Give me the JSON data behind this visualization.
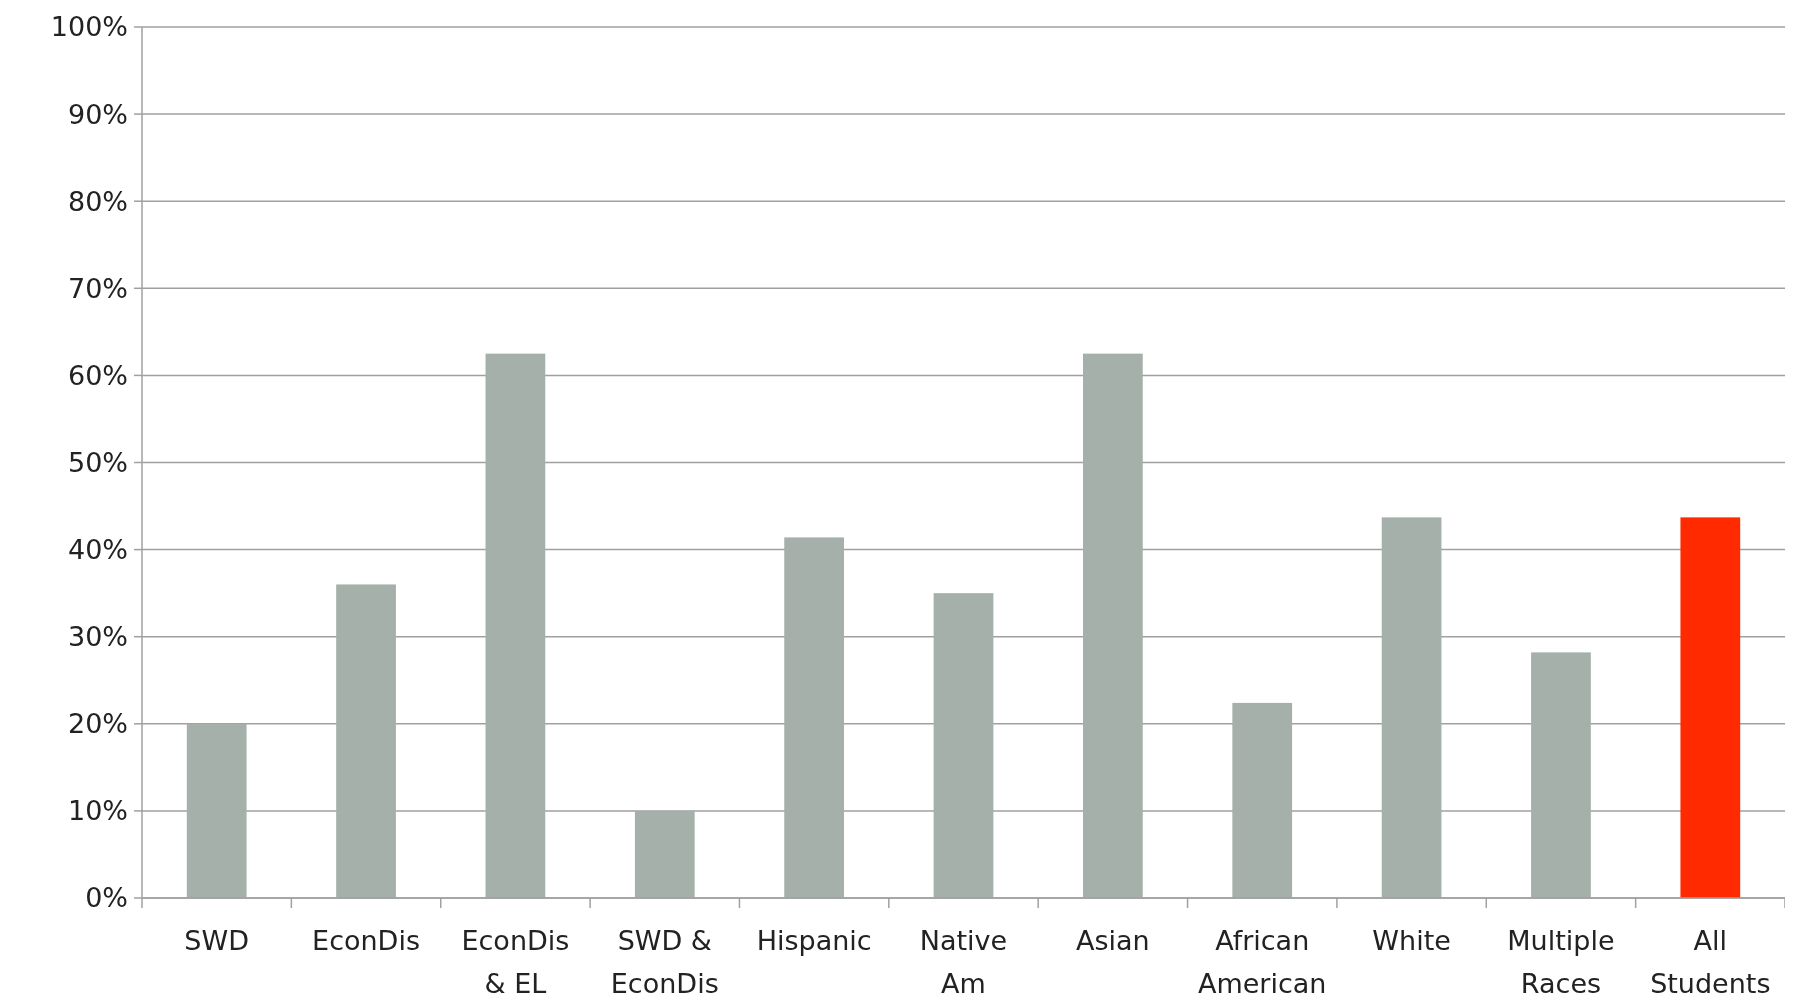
{
  "chart_data": {
    "type": "bar",
    "categories": [
      "SWD",
      "EconDis",
      "EconDis\n& EL",
      "SWD &\nEconDis",
      "Hispanic",
      "Native\nAm",
      "Asian",
      "African\nAmerican",
      "White",
      "Multiple\nRaces",
      "All\nStudents"
    ],
    "values": [
      20,
      36,
      62.5,
      10,
      41.4,
      35,
      62.5,
      22.4,
      43.7,
      28.2,
      43.7
    ],
    "colors": [
      "#a6b0aa",
      "#a6b0aa",
      "#a6b0aa",
      "#a6b0aa",
      "#a6b0aa",
      "#a6b0aa",
      "#a6b0aa",
      "#a6b0aa",
      "#a6b0aa",
      "#a6b0aa",
      "#ff2a00"
    ],
    "ylim": [
      0,
      100
    ],
    "yticks": [
      {
        "value": 0,
        "label": "0%"
      },
      {
        "value": 10,
        "label": "10%"
      },
      {
        "value": 20,
        "label": "20%"
      },
      {
        "value": 30,
        "label": "30%"
      },
      {
        "value": 40,
        "label": "40%"
      },
      {
        "value": 50,
        "label": "50%"
      },
      {
        "value": 60,
        "label": "60%"
      },
      {
        "value": 70,
        "label": "70%"
      },
      {
        "value": 80,
        "label": "80%"
      },
      {
        "value": 90,
        "label": "90%"
      },
      {
        "value": 100,
        "label": "100%"
      }
    ],
    "grid": "y"
  }
}
